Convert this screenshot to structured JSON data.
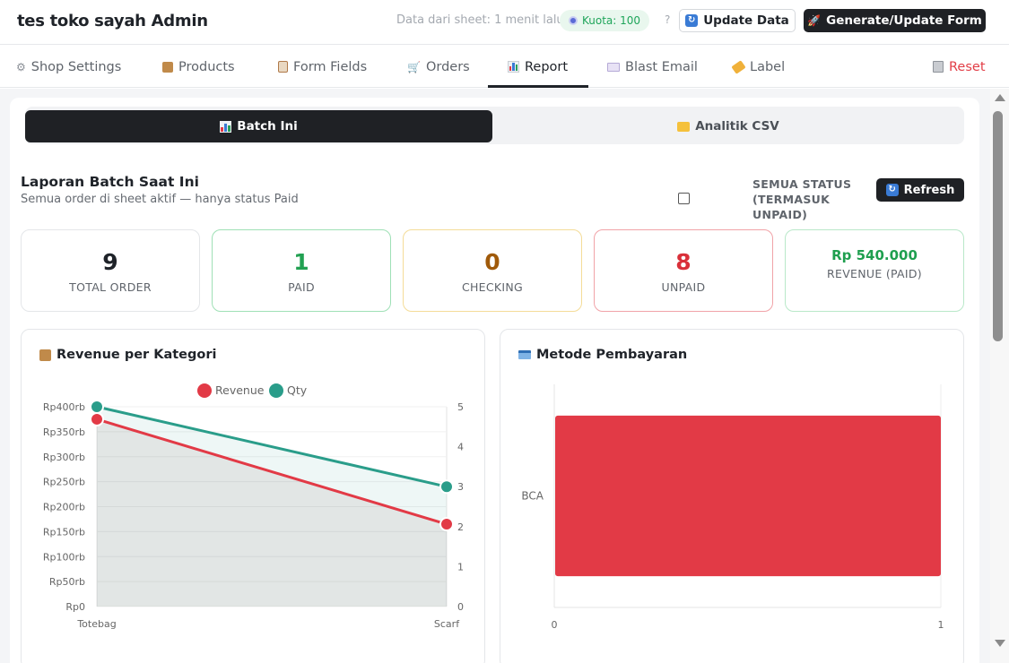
{
  "header": {
    "title": "tes toko sayah Admin",
    "sync_text": "Data dari sheet: 1 menit lalu",
    "quota": "Kuota: 100",
    "help": "?",
    "update_button": "Update Data",
    "generate_button": "Generate/Update Form"
  },
  "nav": {
    "tabs": [
      {
        "label": "Shop Settings",
        "icon": "gear-icon"
      },
      {
        "label": "Products",
        "icon": "box-icon"
      },
      {
        "label": "Form Fields",
        "icon": "clipboard-icon"
      },
      {
        "label": "Orders",
        "icon": "cart-icon"
      },
      {
        "label": "Report",
        "icon": "bar-chart-icon",
        "active": true
      },
      {
        "label": "Blast Email",
        "icon": "mail-icon"
      },
      {
        "label": "Label",
        "icon": "tag-icon"
      }
    ],
    "reset": "Reset"
  },
  "segment": {
    "active": "Batch Ini",
    "inactive": "Analitik CSV"
  },
  "report": {
    "title": "Laporan Batch Saat Ini",
    "subtitle": "Semua order di sheet aktif — hanya status Paid",
    "status_label": "SEMUA STATUS (TERMASUK UNPAID)",
    "status_checked": false,
    "refresh_button": "Refresh"
  },
  "stats": [
    {
      "value": "9",
      "label": "TOTAL ORDER",
      "color": "#1f2329"
    },
    {
      "value": "1",
      "label": "PAID",
      "color": "#22a152"
    },
    {
      "value": "0",
      "label": "CHECKING",
      "color": "#a05a0a"
    },
    {
      "value": "8",
      "label": "UNPAID",
      "color": "#d9303a"
    },
    {
      "value": "Rp 540.000",
      "label": "REVENUE (PAID)",
      "color": "#1f9f4f"
    }
  ],
  "colors": {
    "revenue": "#e23a46",
    "qty": "#2a9d8a",
    "paid_border": "#9fe0b6",
    "checking_border": "#f4dc98",
    "unpaid_border": "#f1a3a8",
    "revenue_border": "#b9e8c9"
  },
  "chart_data": [
    {
      "type": "line",
      "title": "Revenue per Kategori",
      "title_icon": "box-icon",
      "categories": [
        "Totebag",
        "Scarf"
      ],
      "series": [
        {
          "name": "Revenue",
          "values": [
            375000,
            165000
          ],
          "axis": "left"
        },
        {
          "name": "Qty",
          "values": [
            5,
            3
          ],
          "axis": "right"
        }
      ],
      "y_left_ticks": [
        "Rp0",
        "Rp50rb",
        "Rp100rb",
        "Rp150rb",
        "Rp200rb",
        "Rp250rb",
        "Rp300rb",
        "Rp350rb",
        "Rp400rb"
      ],
      "y_left_range": [
        0,
        400000
      ],
      "y_right_ticks": [
        "0",
        "1",
        "2",
        "3",
        "4",
        "5"
      ],
      "y_right_range": [
        0,
        5
      ],
      "legend": "top"
    },
    {
      "type": "bar",
      "orientation": "horizontal",
      "title": "Metode Pembayaran",
      "title_icon": "credit-card-icon",
      "categories": [
        "BCA"
      ],
      "values": [
        1
      ],
      "x_ticks": [
        "0",
        "1"
      ],
      "x_range": [
        0,
        1
      ]
    }
  ]
}
